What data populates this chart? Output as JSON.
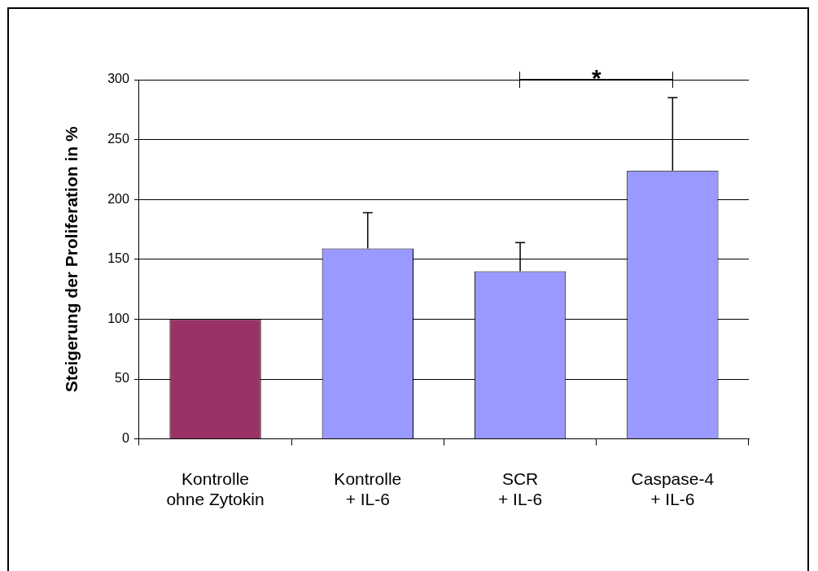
{
  "chart_data": {
    "type": "bar",
    "ylabel": "Steigerung der Proliferation in %",
    "categories": [
      "Kontrolle\nohne Zytokin",
      "Kontrolle\n+ IL-6",
      "SCR\n+ IL-6",
      "Caspase-4\n+ IL-6"
    ],
    "values": [
      100,
      159,
      140,
      224
    ],
    "colors": [
      "#993366",
      "#9999ff",
      "#9999ff",
      "#9999ff"
    ],
    "errors": [
      null,
      [
        159,
        189
      ],
      [
        140,
        164
      ],
      [
        224,
        285
      ]
    ],
    "ylim": [
      0,
      300
    ],
    "yticks": [
      0,
      50,
      100,
      150,
      200,
      250,
      300
    ],
    "grid": "y",
    "annotations": [
      "*"
    ]
  }
}
